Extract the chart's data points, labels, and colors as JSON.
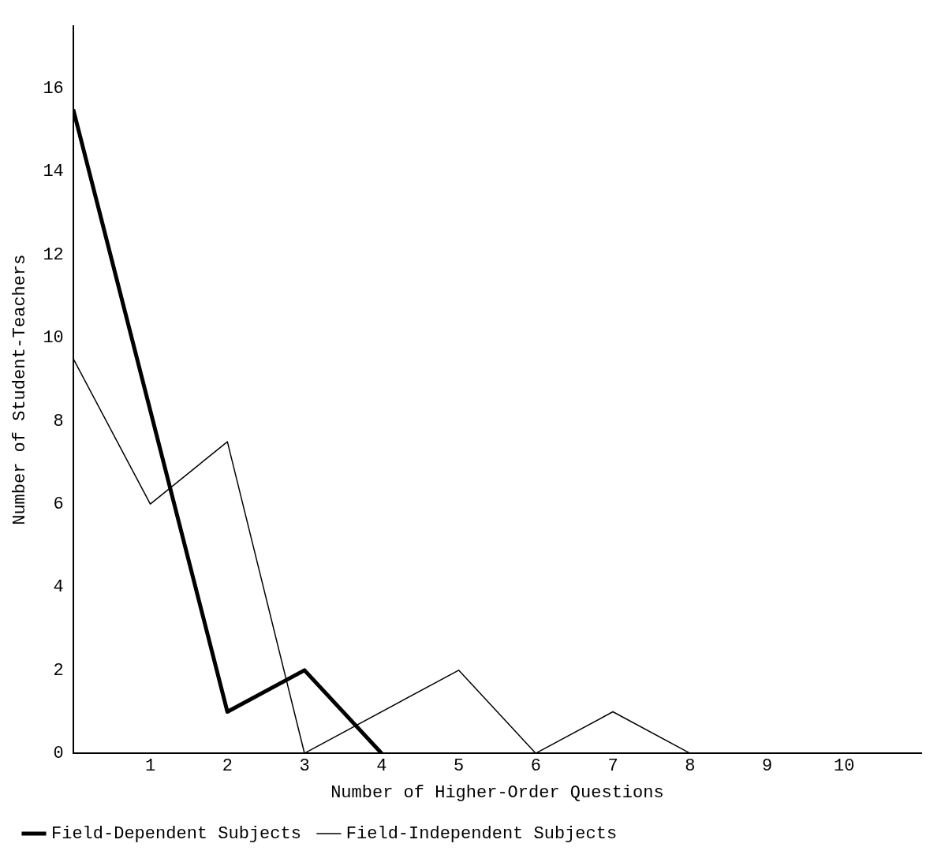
{
  "chart_data": {
    "type": "line",
    "xlabel": "Number of Higher-Order Questions",
    "ylabel": "Number of Student-Teachers",
    "xlim": [
      0,
      11
    ],
    "xticks": [
      1,
      2,
      3,
      4,
      5,
      6,
      7,
      8,
      9,
      10
    ],
    "ylim": [
      0,
      17.5
    ],
    "yticks": [
      0,
      2,
      4,
      6,
      8,
      10,
      12,
      14,
      16
    ],
    "grid": false,
    "legend": "bottom",
    "marker": "none",
    "line_style": "solid",
    "series": [
      {
        "name": "Field-Dependent Subjects",
        "color": "#000000",
        "x": [
          0,
          2,
          3,
          4
        ],
        "values": [
          15.5,
          1,
          2,
          0
        ]
      },
      {
        "name": "Field-Independent Subjects",
        "color": "#000000",
        "x": [
          0,
          1,
          2,
          3,
          5,
          6,
          7,
          8
        ],
        "values": [
          9.5,
          6,
          7.5,
          0,
          2,
          0,
          1,
          0
        ]
      }
    ]
  }
}
